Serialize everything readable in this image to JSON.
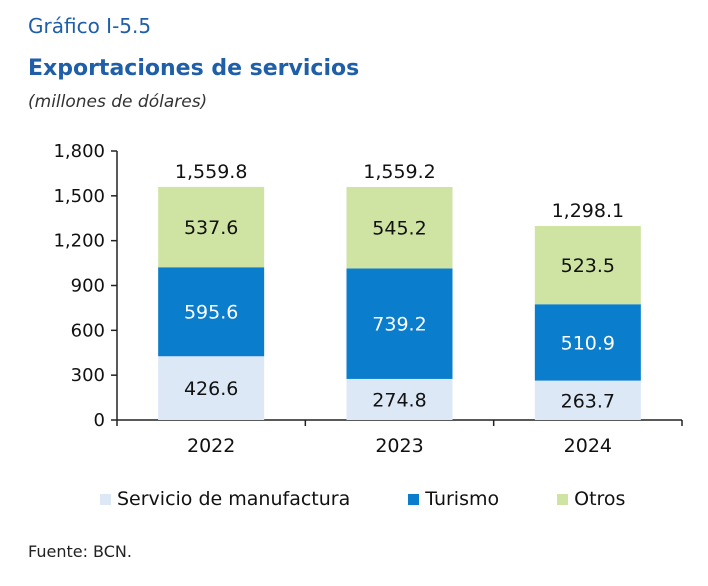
{
  "header": {
    "figure_label": "Gráfico I-5.5",
    "title": "Exportaciones de servicios",
    "subtitle": "(millones de dólares)"
  },
  "footer": {
    "source": "Fuente: BCN."
  },
  "colors": {
    "manufactura": "#dde8f6",
    "turismo": "#0a7dcc",
    "otros": "#cfe3a3",
    "axis": "#222222"
  },
  "chart_data": {
    "type": "bar",
    "stacked": true,
    "categories": [
      "2022",
      "2023",
      "2024"
    ],
    "series": [
      {
        "name": "Servicio de manufactura",
        "values": [
          426.6,
          274.8,
          263.7
        ],
        "labels": [
          "426.6",
          "274.8",
          "263.7"
        ]
      },
      {
        "name": "Turismo",
        "values": [
          595.6,
          739.2,
          510.9
        ],
        "labels": [
          "595.6",
          "739.2",
          "510.9"
        ]
      },
      {
        "name": "Otros",
        "values": [
          537.6,
          545.2,
          523.5
        ],
        "labels": [
          "537.6",
          "545.2",
          "523.5"
        ]
      }
    ],
    "totals": [
      1559.8,
      1559.2,
      1298.1
    ],
    "total_labels": [
      "1,559.8",
      "1,559.2",
      "1,298.1"
    ],
    "ylim": [
      0,
      1800
    ],
    "yticks": [
      0,
      300,
      600,
      900,
      1200,
      1500,
      1800
    ],
    "ytick_labels": [
      "0",
      "300",
      "600",
      "900",
      "1,200",
      "1,500",
      "1,800"
    ],
    "grid": false,
    "legend_position": "bottom"
  }
}
